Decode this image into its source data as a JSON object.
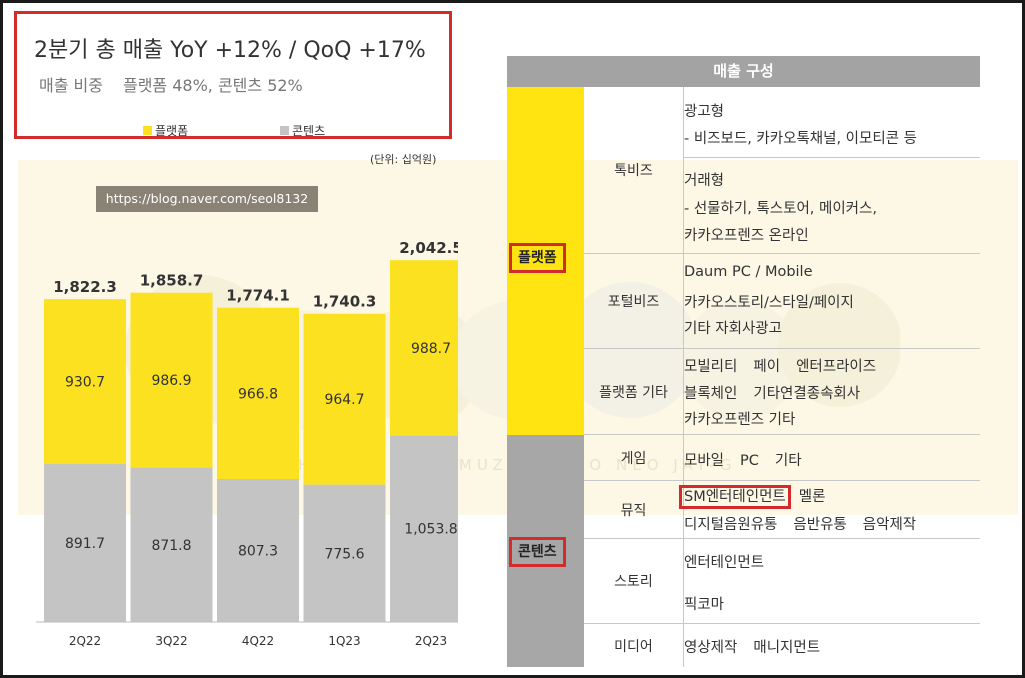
{
  "headline": "2분기 총 매출  YoY +12% / QoQ +17%",
  "subline": {
    "label": "매출 비중",
    "value": "플랫폼 48%, 콘텐츠 52%"
  },
  "legend": {
    "platform": "플랫폼",
    "content": "콘텐츠"
  },
  "unit": "(단위: 십억원)",
  "watermark_url": "https://blog.naver.com/seol8132",
  "watermark_text": "RYAN   APEACH   TUBE  CON&MUZI  FRODO   NEO   JAY-G",
  "colors": {
    "platform": "#fbe120",
    "content": "#c4c4c4",
    "highlight": "#d12b2b",
    "table_header": "#a3a3a3"
  },
  "chart_data": {
    "type": "bar",
    "stacked": true,
    "categories": [
      "2Q22",
      "3Q22",
      "4Q22",
      "1Q23",
      "2Q23"
    ],
    "series": [
      {
        "name": "콘텐츠",
        "values": [
          891.7,
          871.8,
          807.3,
          775.6,
          1053.8
        ]
      },
      {
        "name": "플랫폼",
        "values": [
          930.7,
          986.9,
          966.8,
          964.7,
          988.7
        ]
      }
    ],
    "totals": [
      1822.3,
      1858.7,
      1774.1,
      1740.3,
      2042.5
    ],
    "value_labels": {
      "content": [
        "891.7",
        "871.8",
        "807.3",
        "775.6",
        "1,053.8"
      ],
      "platform": [
        "930.7",
        "986.9",
        "966.8",
        "964.7",
        "988.7"
      ],
      "totals": [
        "1,822.3",
        "1,858.7",
        "1,774.1",
        "1,740.3",
        "2,042.5"
      ]
    },
    "ylim": [
      0,
      2100
    ],
    "title": "",
    "xlabel": "",
    "ylabel": "",
    "grid": false,
    "legend_position": "top"
  },
  "table": {
    "header": "매출 구성",
    "platform_label": "플랫폼",
    "content_label": "콘텐츠",
    "talkbiz": {
      "label": "톡비즈",
      "lines": [
        "광고형",
        "- 비즈보드, 카카오톡채널, 이모티콘 등",
        "거래형",
        "- 선물하기, 톡스토어, 메이커스,",
        "카카오프렌즈 온라인"
      ]
    },
    "portalbiz": {
      "label": "포털비즈",
      "lines": [
        "Daum PC / Mobile",
        "카카오스토리/스타일/페이지",
        "기타 자회사광고"
      ]
    },
    "platform_etc": {
      "label": "플랫폼 기타",
      "line1": [
        "모빌리티",
        "페이",
        "엔터프라이즈"
      ],
      "line2": [
        "블록체인",
        "기타연결종속회사"
      ],
      "line3": "카카오프렌즈 기타"
    },
    "game": {
      "label": "게임",
      "items": [
        "모바일",
        "PC",
        "기타"
      ]
    },
    "music": {
      "label": "뮤직",
      "highlight": "SM엔터테인먼트",
      "line1_rest": "멜론",
      "line2": [
        "디지털음원유통",
        "음반유통",
        "음악제작"
      ]
    },
    "story": {
      "label": "스토리",
      "lines": [
        "엔터테인먼트",
        "픽코마"
      ]
    },
    "media": {
      "label": "미디어",
      "items": [
        "영상제작",
        "매니지먼트"
      ]
    }
  }
}
